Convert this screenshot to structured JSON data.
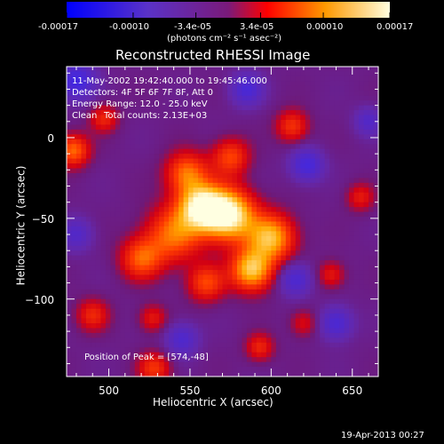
{
  "colorbar": {
    "ticks": [
      "-0.00017",
      "-0.00010",
      "-3.4e-05",
      "3.4e-05",
      "0.00010",
      "0.00017"
    ],
    "units_label": "(photons cm⁻² s⁻¹ asec⁻²)"
  },
  "info": {
    "time_range": "11-May-2002 19:42:40.000 to 19:45:46.000",
    "detectors": "Detectors: 4F 5F 6F 7F 8F, Att 0",
    "energy_range": "Energy Range: 12.0 - 25.0 keV",
    "algorithm": "Clean",
    "total_counts": "Total counts: 2.13E+03",
    "peak_position": "Position of Peak = [574,-48]"
  },
  "footer_timestamp": "19-Apr-2013 00:27",
  "colors": {
    "background": "#000000",
    "foreground": "#ffffff",
    "colormap": [
      "#0000ff",
      "#6a2bbf",
      "#ff0000",
      "#ff8c00",
      "#ffffe0"
    ]
  },
  "chart_data": {
    "type": "heatmap",
    "title": "Reconstructed RHESSI Image",
    "xlabel": "Heliocentric X (arcsec)",
    "ylabel": "Heliocentric Y (arcsec)",
    "xlim": [
      474,
      666
    ],
    "ylim": [
      -148,
      44
    ],
    "xticks": [
      500,
      550,
      600,
      650
    ],
    "yticks": [
      0,
      -50,
      -100
    ],
    "clim": [
      -0.00017,
      0.00017
    ],
    "peak": [
      574,
      -48
    ],
    "sources": [
      {
        "x": 574,
        "y": -48,
        "amp": 1.0,
        "sigma": 11
      },
      {
        "x": 557,
        "y": -43,
        "amp": 0.9,
        "sigma": 10
      },
      {
        "x": 588,
        "y": -82,
        "amp": 0.8,
        "sigma": 9
      },
      {
        "x": 600,
        "y": -62,
        "amp": 0.75,
        "sigma": 10
      },
      {
        "x": 540,
        "y": -60,
        "amp": 0.55,
        "sigma": 12
      },
      {
        "x": 520,
        "y": -75,
        "amp": 0.5,
        "sigma": 9
      },
      {
        "x": 560,
        "y": -90,
        "amp": 0.45,
        "sigma": 8
      },
      {
        "x": 548,
        "y": -22,
        "amp": 0.55,
        "sigma": 9
      },
      {
        "x": 575,
        "y": -12,
        "amp": 0.45,
        "sigma": 8
      },
      {
        "x": 478,
        "y": -8,
        "amp": 0.55,
        "sigma": 7
      },
      {
        "x": 497,
        "y": 12,
        "amp": 0.35,
        "sigma": 6
      },
      {
        "x": 490,
        "y": -110,
        "amp": 0.35,
        "sigma": 7
      },
      {
        "x": 527,
        "y": -112,
        "amp": 0.3,
        "sigma": 6
      },
      {
        "x": 528,
        "y": -143,
        "amp": 0.4,
        "sigma": 7
      },
      {
        "x": 593,
        "y": -130,
        "amp": 0.35,
        "sigma": 6
      },
      {
        "x": 613,
        "y": 7,
        "amp": 0.4,
        "sigma": 7
      },
      {
        "x": 655,
        "y": -37,
        "amp": 0.3,
        "sigma": 6
      },
      {
        "x": 637,
        "y": -85,
        "amp": 0.3,
        "sigma": 6
      },
      {
        "x": 620,
        "y": -115,
        "amp": 0.25,
        "sigma": 6
      }
    ],
    "negative_sources": [
      {
        "x": 480,
        "y": 35,
        "amp": -0.5,
        "sigma": 8
      },
      {
        "x": 585,
        "y": 30,
        "amp": -0.4,
        "sigma": 7
      },
      {
        "x": 622,
        "y": -17,
        "amp": -0.45,
        "sigma": 7
      },
      {
        "x": 615,
        "y": -88,
        "amp": -0.4,
        "sigma": 7
      },
      {
        "x": 640,
        "y": -115,
        "amp": -0.4,
        "sigma": 7
      },
      {
        "x": 545,
        "y": -125,
        "amp": -0.35,
        "sigma": 7
      },
      {
        "x": 480,
        "y": -60,
        "amp": -0.3,
        "sigma": 7
      },
      {
        "x": 660,
        "y": 10,
        "amp": -0.3,
        "sigma": 6
      }
    ]
  }
}
